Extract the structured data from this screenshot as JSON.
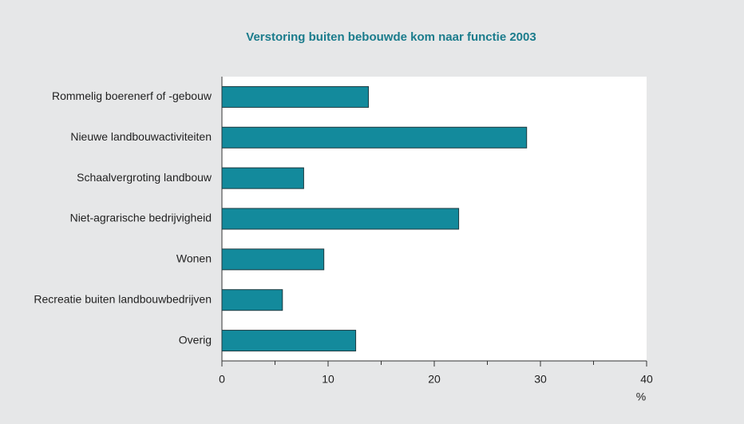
{
  "chart_data": {
    "type": "bar",
    "orientation": "horizontal",
    "title": "Verstoring buiten bebouwde kom naar functie 2003",
    "categories": [
      "Rommelig boerenerf of -gebouw",
      "Nieuwe landbouwactiviteiten",
      "Schaalvergroting landbouw",
      "Niet-agrarische bedrijvigheid",
      "Wonen",
      "Recreatie buiten landbouwbedrijven",
      "Overig"
    ],
    "values": [
      13.8,
      28.7,
      7.7,
      22.3,
      9.6,
      5.7,
      12.6
    ],
    "color": "#138a9c",
    "xlabel": "%",
    "xlim": [
      0,
      40
    ],
    "xticks": [
      0,
      10,
      20,
      30,
      40
    ],
    "xminor_ticks": [
      5,
      15,
      25,
      35
    ],
    "grid": false
  }
}
